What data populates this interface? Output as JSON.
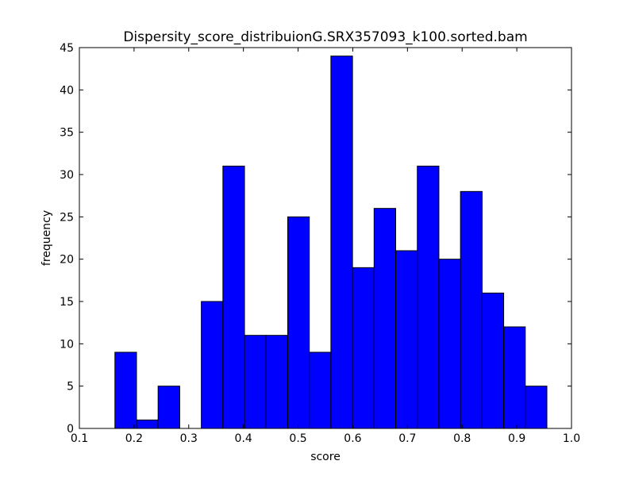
{
  "chart_data": {
    "type": "bar",
    "title": "Dispersity_score_distribuionG.SRX357093_k100.sorted.bam",
    "xlabel": "score",
    "ylabel": "frequency",
    "xlim": [
      0.1,
      1.0
    ],
    "ylim": [
      0,
      45
    ],
    "xticks": [
      "0.1",
      "0.2",
      "0.3",
      "0.4",
      "0.5",
      "0.6",
      "0.7",
      "0.8",
      "0.9",
      "1.0"
    ],
    "yticks": [
      "0",
      "5",
      "10",
      "15",
      "20",
      "25",
      "30",
      "35",
      "40",
      "45"
    ],
    "bin_edges": [
      0.165,
      0.2045,
      0.244,
      0.2835,
      0.323,
      0.3625,
      0.402,
      0.4415,
      0.481,
      0.5205,
      0.56,
      0.5995,
      0.639,
      0.6785,
      0.718,
      0.7575,
      0.797,
      0.8365,
      0.876,
      0.9155,
      0.955
    ],
    "values": [
      9,
      1,
      5,
      0,
      15,
      31,
      11,
      11,
      25,
      9,
      44,
      19,
      26,
      21,
      31,
      20,
      28,
      16,
      12,
      5
    ],
    "bar_color": "#0000ff",
    "edge_color": "#000000",
    "grid": false,
    "legend": "none"
  }
}
